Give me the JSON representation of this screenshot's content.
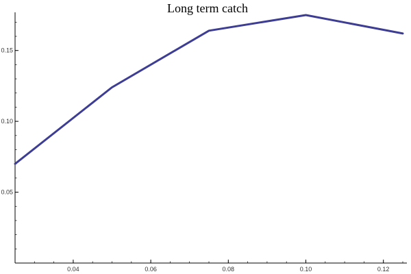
{
  "chart_data": {
    "type": "line",
    "title": "Long term catch",
    "xlabel": "",
    "ylabel": "",
    "xlim": [
      0.025,
      0.125
    ],
    "ylim": [
      0.0,
      0.175
    ],
    "xticks": [
      0.04,
      0.06,
      0.08,
      0.1,
      0.12
    ],
    "xtick_labels": [
      "0.04",
      "0.06",
      "0.08",
      "0.10",
      "0.12"
    ],
    "yticks": [
      0.05,
      0.1,
      0.15
    ],
    "ytick_labels": [
      "0.05",
      "0.10",
      "0.15"
    ],
    "grid": false,
    "legend": "none",
    "series": [
      {
        "color": "#3d3d94",
        "x": [
          0.025,
          0.05,
          0.075,
          0.1,
          0.125
        ],
        "y": [
          0.07,
          0.124,
          0.164,
          0.175,
          0.162
        ]
      }
    ]
  }
}
